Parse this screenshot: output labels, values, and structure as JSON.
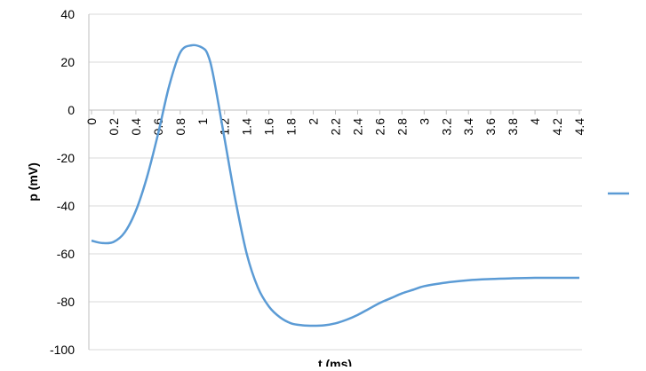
{
  "chart_data": {
    "type": "line",
    "xlabel": "t (ms)",
    "ylabel": "p (mV)",
    "ylim": [
      -100,
      40
    ],
    "yticks": [
      "40",
      "20",
      "0",
      "-20",
      "-40",
      "-60",
      "-80",
      "-100"
    ],
    "xlim": [
      0,
      4.4
    ],
    "xticks": [
      "0",
      "0.2",
      "0.4",
      "0.6",
      "0.8",
      "1",
      "1.2",
      "1.4",
      "1.6",
      "1.8",
      "2",
      "2.2",
      "2.4",
      "2.6",
      "2.8",
      "3",
      "3.2",
      "3.4",
      "3.6",
      "3.8",
      "4",
      "4.2",
      "4.4"
    ],
    "grid": "horizontal",
    "legend_position": "right",
    "series_color": "#5b9bd5",
    "series": [
      {
        "x": [
          0,
          0.1,
          0.2,
          0.3,
          0.4,
          0.5,
          0.6,
          0.7,
          0.8,
          0.9,
          1.0,
          1.05,
          1.1,
          1.2,
          1.3,
          1.4,
          1.5,
          1.6,
          1.7,
          1.8,
          1.9,
          2.0,
          2.1,
          2.2,
          2.3,
          2.4,
          2.5,
          2.6,
          2.7,
          2.8,
          2.9,
          3.0,
          3.2,
          3.4,
          3.6,
          3.8,
          4.0,
          4.2,
          4.4
        ],
        "y": [
          -54.5,
          -55.5,
          -55,
          -51,
          -42,
          -28,
          -10,
          10,
          24,
          27,
          26,
          23,
          14,
          -12,
          -38,
          -60,
          -74,
          -82,
          -86.5,
          -89,
          -89.8,
          -90,
          -89.8,
          -89,
          -87.5,
          -85.5,
          -83,
          -80.5,
          -78.5,
          -76.5,
          -75,
          -73.5,
          -72,
          -71,
          -70.5,
          -70.2,
          -70,
          -70,
          -70
        ]
      }
    ]
  }
}
